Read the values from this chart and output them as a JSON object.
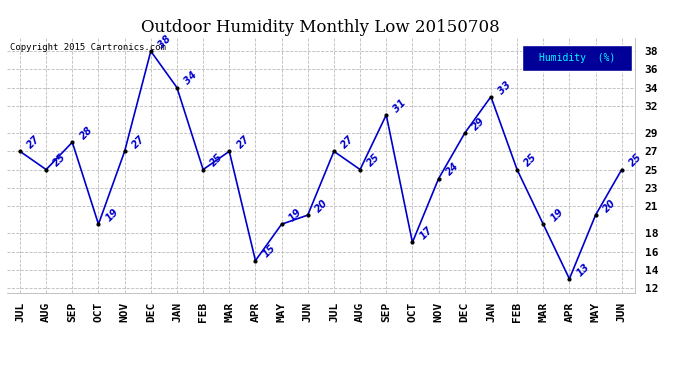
{
  "title": "Outdoor Humidity Monthly Low 20150708",
  "copyright_text": "Copyright 2015 Cartronics.com",
  "legend_label": "Humidity  (%)",
  "categories": [
    "JUL",
    "AUG",
    "SEP",
    "OCT",
    "NOV",
    "DEC",
    "JAN",
    "FEB",
    "MAR",
    "APR",
    "MAY",
    "JUN",
    "JUL",
    "AUG",
    "SEP",
    "OCT",
    "NOV",
    "DEC",
    "JAN",
    "FEB",
    "MAR",
    "APR",
    "MAY",
    "JUN"
  ],
  "values": [
    27,
    25,
    28,
    19,
    27,
    38,
    34,
    25,
    27,
    15,
    19,
    20,
    27,
    25,
    31,
    17,
    24,
    29,
    33,
    25,
    19,
    13,
    20,
    25
  ],
  "line_color": "#0000cc",
  "marker_color": "#000000",
  "background_color": "#ffffff",
  "grid_color": "#bbbbbb",
  "title_fontsize": 12,
  "tick_fontsize": 8,
  "ylim_min": 11.5,
  "ylim_max": 39.5,
  "yticks": [
    38,
    36,
    34,
    32,
    29,
    27,
    25,
    23,
    21,
    18,
    16,
    14,
    12
  ],
  "legend_bg": "#000099",
  "legend_text_color": "#00ffff"
}
